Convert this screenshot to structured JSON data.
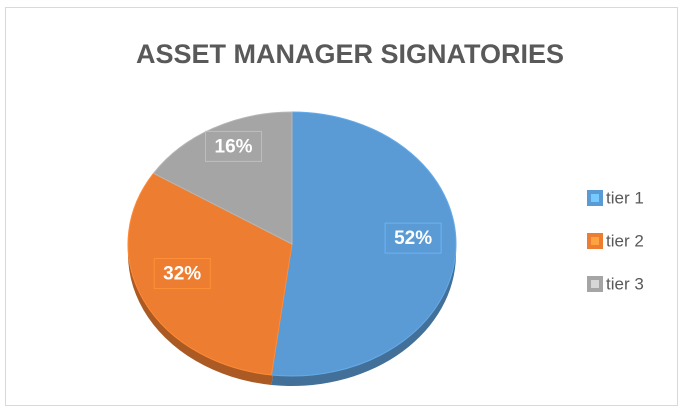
{
  "chart_data": {
    "type": "pie",
    "title": "ASSET MANAGER SIGNATORIES",
    "categories": [
      "tier 1",
      "tier 2",
      "tier 3"
    ],
    "values": [
      52,
      32,
      16
    ],
    "value_labels": [
      "52%",
      "32%",
      "16%"
    ],
    "colors": [
      "#5b9bd5",
      "#ed7d31",
      "#a5a5a5"
    ],
    "legend": "right"
  }
}
